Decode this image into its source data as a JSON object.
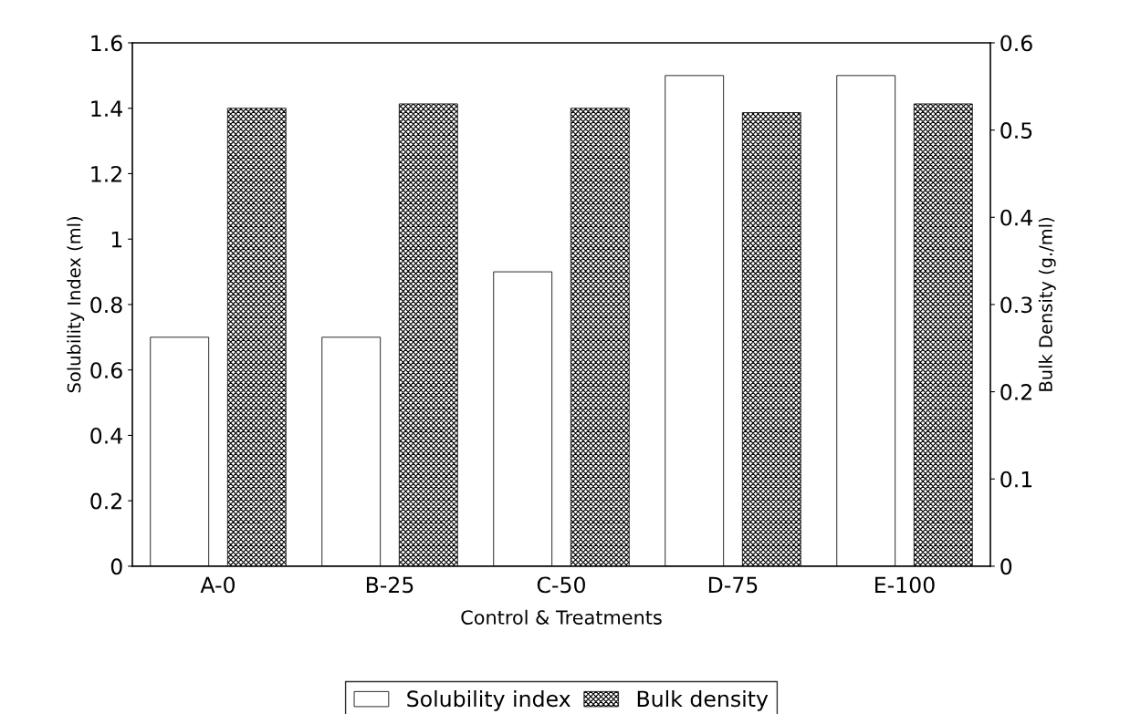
{
  "chart_data": {
    "type": "bar",
    "xlabel": "Control & Treatments",
    "ylabel": "Solubility Index (ml)",
    "y2label": "Bulk Density (g./ml)",
    "categories": [
      "A-0",
      "B-25",
      "C-50",
      "D-75",
      "E-100"
    ],
    "series": [
      {
        "name": "Solubility index",
        "color": "#ffffff",
        "values": [
          0.7,
          0.7,
          0.9,
          1.5,
          1.5
        ]
      },
      {
        "name": "Bulk density",
        "color": "#000000",
        "axis": "y2",
        "values": [
          0.525,
          0.53,
          0.525,
          0.52,
          0.53
        ]
      }
    ],
    "ylim": [
      0,
      1.6
    ],
    "yticks": [
      0,
      0.2,
      0.4,
      0.6,
      0.8,
      1,
      1.2,
      1.4,
      1.6
    ],
    "y2lim": [
      0,
      0.6
    ],
    "y2ticks": [
      0,
      0.1,
      0.2,
      0.3,
      0.4,
      0.5,
      0.6
    ],
    "grid": false,
    "legend": "bottom"
  }
}
